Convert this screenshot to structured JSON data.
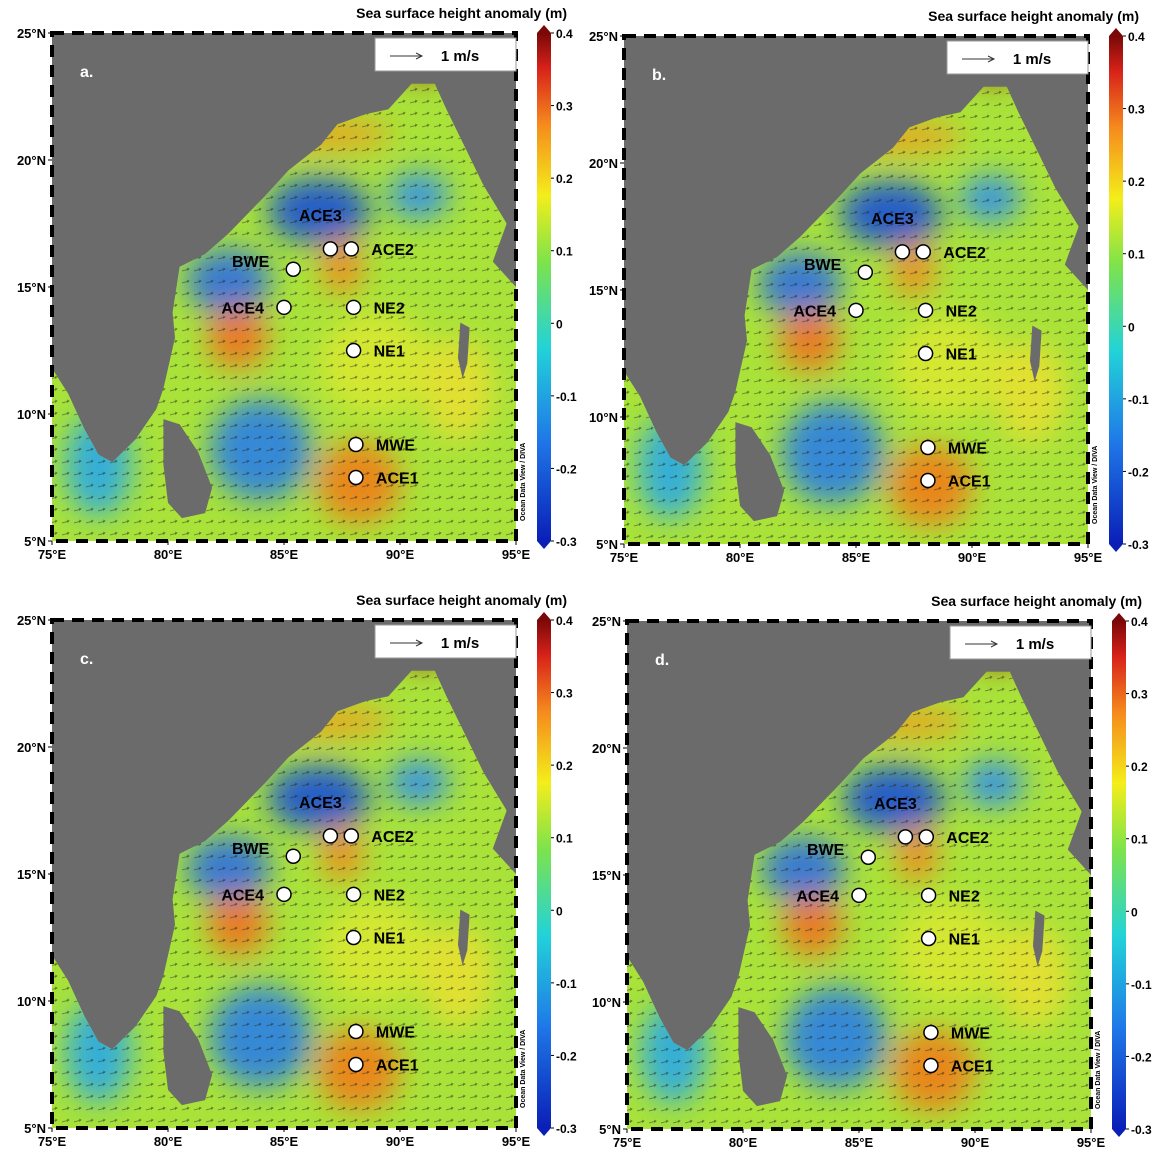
{
  "axes": {
    "xlim": [
      75,
      95
    ],
    "ylim": [
      5,
      25
    ],
    "xticks": [
      {
        "value": 75,
        "label": "75°E"
      },
      {
        "value": 80,
        "label": "80°E"
      },
      {
        "value": 85,
        "label": "85°E"
      },
      {
        "value": 90,
        "label": "90°E"
      },
      {
        "value": 95,
        "label": "95°E"
      }
    ],
    "yticks": [
      {
        "value": 5,
        "label": "5°N"
      },
      {
        "value": 10,
        "label": "10°N"
      },
      {
        "value": 15,
        "label": "15°N"
      },
      {
        "value": 20,
        "label": "20°N"
      },
      {
        "value": 25,
        "label": "25°N"
      }
    ]
  },
  "colorbar": {
    "title": "Sea surface height anomaly (m)",
    "lim": [
      -0.3,
      0.4
    ],
    "ticks": [
      -0.3,
      -0.2,
      -0.1,
      0,
      0.1,
      0.2,
      0.3,
      0.4
    ]
  },
  "scale_label": "1 m/s",
  "credit": "Ocean Data View / DIVA",
  "stations": [
    {
      "name": "ACE3",
      "lon": 87.0,
      "lat": 16.5
    },
    {
      "name": "ACE2",
      "lon": 87.9,
      "lat": 16.5
    },
    {
      "name": "BWE",
      "lon": 85.4,
      "lat": 15.7
    },
    {
      "name": "ACE4",
      "lon": 85.0,
      "lat": 14.2
    },
    {
      "name": "NE2",
      "lon": 88.0,
      "lat": 14.2
    },
    {
      "name": "NE1",
      "lon": 88.0,
      "lat": 12.5
    },
    {
      "name": "MWE",
      "lon": 88.1,
      "lat": 8.8
    },
    {
      "name": "ACE1",
      "lon": 88.1,
      "lat": 7.5
    }
  ],
  "panels": [
    {
      "label": "a."
    },
    {
      "label": "b."
    },
    {
      "label": "c."
    },
    {
      "label": "d."
    }
  ]
}
